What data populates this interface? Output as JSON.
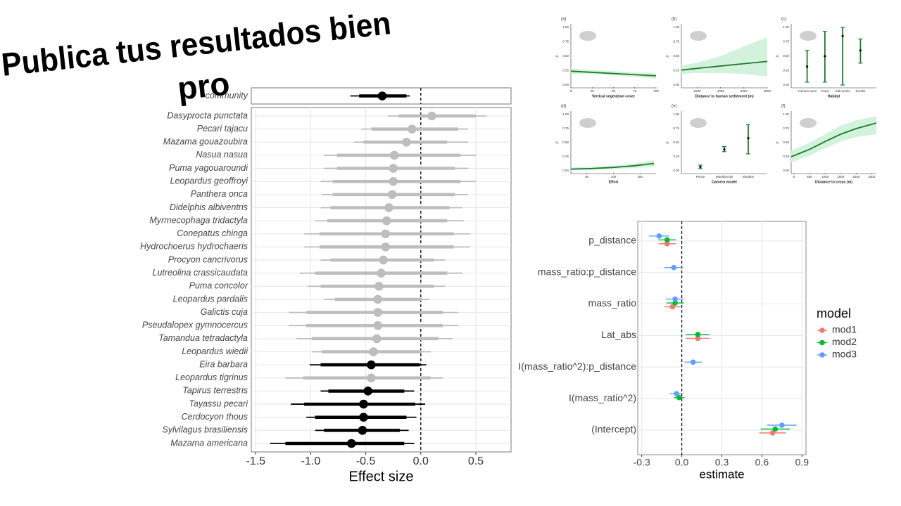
{
  "slide": {
    "title_lines": [
      "Publica tus resultados bien",
      "pro"
    ]
  },
  "chart_data": [
    {
      "type": "forest",
      "categories": [
        "community"
      ],
      "values": [
        -0.35
      ],
      "inner_lower": [
        -0.56
      ],
      "inner_upper": [
        -0.13
      ],
      "outer_lower": [
        -0.64
      ],
      "outer_upper": [
        -0.1
      ],
      "colors": [
        "#000000"
      ],
      "xlim": [
        -1.54,
        0.82
      ],
      "reference_line": 0
    },
    {
      "type": "forest",
      "categories": [
        "Dasyprocta punctata",
        "Pecari tajacu",
        "Mazama gouazoubira",
        "Nasua nasua",
        "Puma yagouaroundi",
        "Leopardus geoffroyi",
        "Panthera onca",
        "Didelphis albiventris",
        "Myrmecophaga tridactyla",
        "Conepatus chinga",
        "Hydrochoerus hydrochaeris",
        "Procyon cancrivorus",
        "Lutreolina crassicaudata",
        "Puma concolor",
        "Leopardus pardalis",
        "Galictis cuja",
        "Pseudalopex gymnocercus",
        "Tamandua tetradactyla",
        "Leopardus wiedii",
        "Eira barbara",
        "Leopardus tigrinus",
        "Tapirus terrestris",
        "Tayassu pecari",
        "Cerdocyon thous",
        "Sylvilagus brasiliensis",
        "Mazama americana"
      ],
      "values": [
        0.1,
        -0.08,
        -0.13,
        -0.24,
        -0.25,
        -0.25,
        -0.26,
        -0.29,
        -0.31,
        -0.32,
        -0.32,
        -0.34,
        -0.36,
        -0.38,
        -0.39,
        -0.39,
        -0.39,
        -0.4,
        -0.43,
        -0.45,
        -0.45,
        -0.48,
        -0.52,
        -0.52,
        -0.53,
        -0.63
      ],
      "inner_lower": [
        -0.2,
        -0.45,
        -0.52,
        -0.76,
        -0.76,
        -0.8,
        -0.8,
        -0.82,
        -0.85,
        -0.92,
        -0.92,
        -0.82,
        -0.96,
        -0.91,
        -0.78,
        -1.04,
        -1.04,
        -0.99,
        -0.9,
        -0.91,
        -1.07,
        -0.84,
        -1.06,
        -0.96,
        -0.88,
        -1.23
      ],
      "inner_upper": [
        0.5,
        0.34,
        0.24,
        0.36,
        0.31,
        0.36,
        0.31,
        0.26,
        0.24,
        0.3,
        0.3,
        0.12,
        0.24,
        0.12,
        0.01,
        0.2,
        0.2,
        0.16,
        0.01,
        -0.01,
        0.09,
        -0.15,
        -0.05,
        -0.13,
        -0.19,
        -0.15
      ],
      "outer_lower": [
        -0.3,
        -0.54,
        -0.61,
        -0.88,
        -0.88,
        -0.91,
        -0.9,
        -0.91,
        -0.96,
        -1.06,
        -1.06,
        -0.91,
        -1.1,
        -1.03,
        -0.88,
        -1.2,
        -1.2,
        -1.13,
        -0.99,
        -1.01,
        -1.23,
        -0.91,
        -1.18,
        -1.04,
        -0.96,
        -1.37
      ],
      "outer_upper": [
        0.6,
        0.43,
        0.43,
        0.5,
        0.43,
        0.5,
        0.43,
        0.38,
        0.39,
        0.45,
        0.45,
        0.22,
        0.38,
        0.22,
        0.08,
        0.34,
        0.34,
        0.29,
        0.09,
        0.05,
        0.2,
        -0.06,
        0.04,
        -0.04,
        -0.11,
        -0.06
      ],
      "colors": [
        "#bdbdbd",
        "#bdbdbd",
        "#bdbdbd",
        "#bdbdbd",
        "#bdbdbd",
        "#bdbdbd",
        "#bdbdbd",
        "#bdbdbd",
        "#bdbdbd",
        "#bdbdbd",
        "#bdbdbd",
        "#bdbdbd",
        "#bdbdbd",
        "#bdbdbd",
        "#bdbdbd",
        "#bdbdbd",
        "#bdbdbd",
        "#bdbdbd",
        "#bdbdbd",
        "#000000",
        "#bdbdbd",
        "#000000",
        "#000000",
        "#000000",
        "#000000",
        "#000000"
      ],
      "xlim": [
        -1.54,
        0.82
      ],
      "xticks": [
        -1.5,
        {
          "value": -1,
          "label": "-1.0"
        },
        -0.5,
        {
          "value": 0,
          "label": "0.0"
        },
        0.5
      ],
      "reference_line": 0,
      "x_label": "Effect size",
      "grid": true
    },
    {
      "type": "line_ribbon",
      "panel_label": "(a)",
      "x_label": "Vertical vegetation cover",
      "y_label": "p",
      "x": [
        0,
        25,
        50,
        75,
        100
      ],
      "values": [
        0.24,
        0.22,
        0.2,
        0.18,
        0.16
      ],
      "lower": [
        0.19,
        0.19,
        0.17,
        0.14,
        0.11
      ],
      "upper": [
        0.29,
        0.26,
        0.24,
        0.22,
        0.21
      ],
      "xlim": [
        0,
        100
      ],
      "xticks": [
        0,
        25,
        50,
        75,
        100
      ],
      "ylim": [
        0,
        1
      ],
      "yticks": [
        {
          "value": 0,
          "label": "0.00"
        },
        0.25,
        {
          "value": 0.5,
          "label": "0.50"
        },
        0.75,
        {
          "value": 1,
          "label": "1.00"
        }
      ],
      "color": "#1f7a2e"
    },
    {
      "type": "line_ribbon",
      "panel_label": "(b)",
      "x_label": "Distance to human settlement (m)",
      "y_label": "p",
      "x": [
        640,
        2000,
        4000,
        6000,
        8000
      ],
      "values": [
        0.26,
        0.29,
        0.33,
        0.37,
        0.41
      ],
      "lower": [
        0.19,
        0.21,
        0.21,
        0.19,
        0.15
      ],
      "upper": [
        0.34,
        0.39,
        0.5,
        0.67,
        0.83
      ],
      "xlim": [
        640,
        8000
      ],
      "xticks": [
        2000,
        4000,
        6000,
        8000
      ],
      "ylim": [
        0,
        1
      ],
      "yticks": [
        {
          "value": 0,
          "label": "0.00"
        },
        0.25,
        {
          "value": 0.5,
          "label": "0.50"
        },
        0.75,
        {
          "value": 1,
          "label": "1.00"
        }
      ],
      "color": "#1f7a2e"
    },
    {
      "type": "errorbar",
      "panel_label": "(c)",
      "x_label": "Habitat",
      "y_label": "p",
      "categories": [
        "Column-cacti",
        "Crops",
        "Salt-works",
        "Scrubs"
      ],
      "values": [
        0.32,
        0.5,
        0.85,
        0.6
      ],
      "lower": [
        0.05,
        0.05,
        0.0,
        0.38
      ],
      "upper": [
        0.6,
        0.93,
        1.0,
        0.8
      ],
      "ylim": [
        0,
        1
      ],
      "yticks": [
        {
          "value": 0,
          "label": "0.00"
        },
        0.25,
        {
          "value": 0.5,
          "label": "0.50"
        },
        0.75,
        {
          "value": 1,
          "label": "1.00"
        }
      ],
      "color": "#1f7a2e"
    },
    {
      "type": "line_ribbon",
      "panel_label": "(d)",
      "x_label": "Effort",
      "y_label": "p",
      "x": [
        20,
        60,
        100,
        140,
        176
      ],
      "values": [
        0.03,
        0.04,
        0.06,
        0.09,
        0.13
      ],
      "lower": [
        0.01,
        0.02,
        0.03,
        0.05,
        0.07
      ],
      "upper": [
        0.06,
        0.07,
        0.09,
        0.13,
        0.19
      ],
      "xlim": [
        20,
        180
      ],
      "xticks": [
        50,
        100,
        150
      ],
      "ylim": [
        0,
        1
      ],
      "yticks": [
        {
          "value": 0,
          "label": "0.00"
        },
        0.25,
        {
          "value": 0.5,
          "label": "0.50"
        },
        0.75,
        {
          "value": 1,
          "label": "1.00"
        }
      ],
      "color": "#1f7a2e"
    },
    {
      "type": "errorbar",
      "panel_label": "(e)",
      "x_label": "Camera model",
      "y_label": "p",
      "categories": [
        "Prince",
        "MoultrieA30",
        "Moultrie"
      ],
      "values": [
        0.07,
        0.38,
        0.58
      ],
      "lower": [
        0.04,
        0.34,
        0.3
      ],
      "upper": [
        0.1,
        0.43,
        0.82
      ],
      "ylim": [
        0,
        1
      ],
      "yticks": [
        {
          "value": 0,
          "label": "0.00"
        },
        0.25,
        {
          "value": 0.5,
          "label": "0.50"
        },
        0.75,
        {
          "value": 1,
          "label": "1.00"
        }
      ],
      "color": "#1f7a2e"
    },
    {
      "type": "line_ribbon",
      "panel_label": "(f)",
      "x_label": "Distance to crops (m)",
      "y_label": "p",
      "x": [
        -90,
        500,
        1000,
        1500,
        2000,
        2650
      ],
      "values": [
        0.25,
        0.38,
        0.52,
        0.65,
        0.75,
        0.85
      ],
      "lower": [
        0.15,
        0.27,
        0.4,
        0.52,
        0.6,
        0.65
      ],
      "upper": [
        0.36,
        0.5,
        0.65,
        0.8,
        0.9,
        0.97
      ],
      "xlim": [
        -90,
        2650
      ],
      "xticks": [
        0,
        500,
        1000,
        1500,
        2000,
        2500
      ],
      "ylim": [
        0,
        1
      ],
      "yticks": [
        {
          "value": 0,
          "label": "0.00"
        },
        0.25,
        {
          "value": 0.5,
          "label": "0.50"
        },
        0.75,
        {
          "value": 1,
          "label": "1.00"
        }
      ],
      "color": "#1f7a2e"
    },
    {
      "type": "dotwhisker",
      "categories": [
        "p_distance",
        "mass_ratio:p_distance",
        "mass_ratio",
        "Lat_abs",
        "I(mass_ratio^2):p_distance",
        "I(mass_ratio^2)",
        "(Intercept)"
      ],
      "series": [
        {
          "name": "mod1",
          "color": "#F8766D",
          "values": [
            -0.11,
            null,
            -0.07,
            0.12,
            null,
            null,
            0.68
          ],
          "errors": [
            0.065,
            null,
            0.06,
            0.09,
            null,
            null,
            0.1
          ]
        },
        {
          "name": "mod2",
          "color": "#00BA38",
          "values": [
            -0.11,
            null,
            -0.05,
            0.12,
            null,
            -0.02,
            0.7
          ],
          "errors": [
            0.065,
            null,
            0.065,
            0.09,
            null,
            0.04,
            0.11
          ]
        },
        {
          "name": "mod3",
          "color": "#619CFF",
          "values": [
            -0.17,
            -0.06,
            -0.05,
            null,
            0.085,
            -0.04,
            0.75
          ],
          "errors": [
            0.075,
            0.07,
            0.07,
            null,
            0.065,
            0.05,
            0.11
          ]
        }
      ],
      "xlim": [
        -0.33,
        0.93
      ],
      "xticks": [
        -0.3,
        {
          "value": 0,
          "label": "0.0"
        },
        0.3,
        0.6,
        0.9
      ],
      "reference_line": 0,
      "x_label": "estimate",
      "legend_title": "model",
      "grid": true
    }
  ]
}
